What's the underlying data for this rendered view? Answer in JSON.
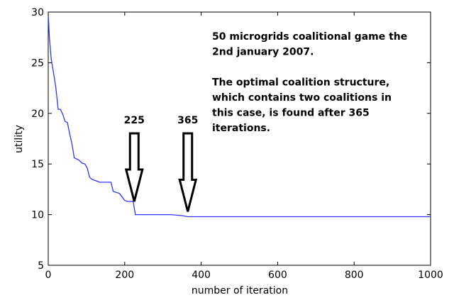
{
  "chart_data": {
    "type": "line",
    "title": "",
    "xlabel": "number of iteration",
    "ylabel": "utility",
    "xlim": [
      0,
      1000
    ],
    "ylim": [
      5,
      30
    ],
    "x_ticks": [
      "0",
      "200",
      "400",
      "600",
      "800",
      "1000"
    ],
    "y_ticks": [
      "5",
      "10",
      "15",
      "20",
      "25",
      "30"
    ],
    "grid": false,
    "line_color": "#3333ff",
    "series": [
      {
        "x": [
          0,
          3,
          8,
          14,
          20,
          26,
          32,
          38,
          44,
          50,
          56,
          62,
          68,
          74,
          80,
          88,
          96,
          102,
          108,
          114,
          120,
          128,
          134,
          140,
          148,
          156,
          164,
          170,
          178,
          186,
          194,
          200,
          208,
          214,
          222,
          228,
          240,
          260,
          290,
          320,
          350,
          365,
          380,
          420,
          500,
          600,
          700,
          800,
          900,
          1000
        ],
        "y": [
          29.8,
          27.5,
          25.3,
          24.0,
          22.5,
          20.4,
          20.4,
          19.9,
          19.2,
          19.1,
          18.0,
          17.0,
          15.6,
          15.5,
          15.4,
          15.1,
          15.0,
          14.6,
          13.7,
          13.5,
          13.4,
          13.3,
          13.2,
          13.2,
          13.2,
          13.2,
          13.2,
          12.3,
          12.2,
          12.1,
          11.7,
          11.4,
          11.3,
          11.3,
          11.3,
          10.0,
          10.0,
          10.0,
          10.0,
          10.0,
          9.9,
          9.8,
          9.8,
          9.8,
          9.8,
          9.8,
          9.8,
          9.8,
          9.8,
          9.8
        ]
      }
    ],
    "annotation_lines": [
      "50 microgrids coalitional game the",
      "2nd january 2007.",
      "",
      "The optimal coalition structure,",
      "which contains two coalitions in",
      "this case, is found after 365",
      "iterations."
    ],
    "arrows": [
      {
        "label": "225",
        "x": 225,
        "y": 11.3
      },
      {
        "label": "365",
        "x": 365,
        "y": 10.3
      }
    ]
  }
}
